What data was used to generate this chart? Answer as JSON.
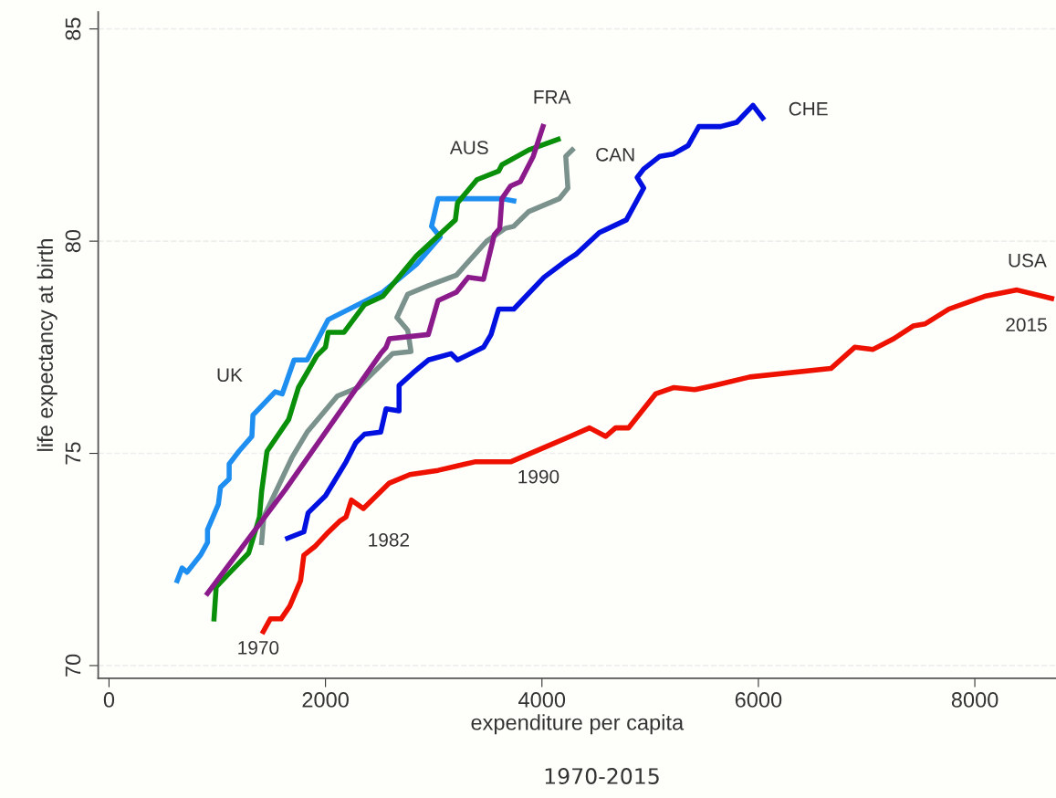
{
  "chart_data": {
    "type": "line",
    "xlabel": "expenditure per capita",
    "ylabel": "life expectancy at birth",
    "xlim": [
      -100,
      8750
    ],
    "ylim": [
      69.7,
      85.4
    ],
    "xticks": [
      0,
      2000,
      4000,
      6000,
      8000
    ],
    "yticks": [
      70,
      75,
      80,
      85
    ],
    "grid": "y",
    "line_style": "solid",
    "marker": "none",
    "series": [
      {
        "color": "#1e8ff0",
        "x": [
          630,
          675,
          720,
          845,
          910,
          910,
          1010,
          1030,
          1110,
          1110,
          1200,
          1320,
          1330,
          1535,
          1600,
          1710,
          1830,
          2025,
          2530,
          2840,
          3060,
          2980,
          3040,
          3630,
          3740
        ],
        "values": [
          72.0,
          72.3,
          72.2,
          72.6,
          72.9,
          73.2,
          73.8,
          74.2,
          74.4,
          74.75,
          75.05,
          75.4,
          75.9,
          76.45,
          76.4,
          77.2,
          77.2,
          78.15,
          78.8,
          79.45,
          80.1,
          80.35,
          81.0,
          81.0,
          80.95
        ]
      },
      {
        "color": "#0a8f0a",
        "x": [
          970,
          990,
          1120,
          1290,
          1390,
          1410,
          1460,
          1660,
          1750,
          1920,
          2000,
          2025,
          2170,
          2360,
          2530,
          2840,
          3200,
          3220,
          3400,
          3600,
          3630,
          3880,
          4150
        ],
        "values": [
          71.1,
          71.85,
          72.2,
          72.65,
          73.5,
          74.1,
          75.05,
          75.8,
          76.55,
          77.3,
          77.5,
          77.85,
          77.85,
          78.5,
          78.7,
          79.65,
          80.5,
          80.9,
          81.45,
          81.65,
          81.8,
          82.15,
          82.4
        ]
      },
      {
        "color": "#7a918c",
        "x": [
          1410,
          1430,
          1690,
          1830,
          2110,
          2300,
          2620,
          2790,
          2760,
          2660,
          2760,
          2950,
          3210,
          3490,
          3660,
          3740,
          3880,
          4160,
          4240,
          4220,
          4280
        ],
        "values": [
          72.9,
          73.5,
          74.9,
          75.5,
          76.35,
          76.55,
          77.35,
          77.4,
          77.9,
          78.2,
          78.75,
          78.95,
          79.2,
          80.0,
          80.3,
          80.35,
          80.7,
          81.0,
          81.25,
          82.0,
          82.15
        ]
      },
      {
        "color": "#8b1a8b",
        "x": [
          910,
          1630,
          2510,
          2560,
          2590,
          2950,
          3040,
          3210,
          3320,
          3460,
          3560,
          3610,
          3630,
          3710,
          3800,
          3920,
          4010
        ],
        "values": [
          71.7,
          74.15,
          77.35,
          77.5,
          77.7,
          77.8,
          78.6,
          78.8,
          79.15,
          79.1,
          80.15,
          80.3,
          81.0,
          81.3,
          81.4,
          82.0,
          82.7
        ]
      },
      {
        "color": "#0010e0",
        "x": [
          1650,
          1800,
          1840,
          2000,
          2190,
          2280,
          2360,
          2510,
          2560,
          2680,
          2680,
          2810,
          2950,
          3160,
          3220,
          3460,
          3530,
          3600,
          3740,
          4020,
          4230,
          4320,
          4530,
          4780,
          4940,
          4880,
          4940,
          5090,
          5210,
          5350,
          5450,
          5650,
          5800,
          5950,
          6040
        ],
        "values": [
          73.0,
          73.15,
          73.6,
          74.0,
          74.8,
          75.25,
          75.45,
          75.5,
          76.05,
          76.0,
          76.6,
          76.9,
          77.2,
          77.35,
          77.2,
          77.5,
          77.8,
          78.4,
          78.4,
          79.15,
          79.55,
          79.7,
          80.2,
          80.5,
          81.25,
          81.5,
          81.7,
          82.0,
          82.05,
          82.25,
          82.7,
          82.7,
          82.8,
          83.2,
          82.9
        ]
      },
      {
        "color": "#ee1100",
        "x": [
          1425,
          1490,
          1590,
          1670,
          1770,
          1800,
          1900,
          2010,
          2130,
          2190,
          2240,
          2350,
          2590,
          2780,
          3040,
          3210,
          3380,
          3710,
          4050,
          4260,
          4440,
          4590,
          4680,
          4800,
          5050,
          5220,
          5410,
          5590,
          5920,
          6670,
          6890,
          7060,
          7250,
          7430,
          7540,
          7760,
          8090,
          8390,
          8710
        ],
        "values": [
          70.8,
          71.1,
          71.1,
          71.4,
          72.0,
          72.6,
          72.8,
          73.1,
          73.4,
          73.5,
          73.9,
          73.7,
          74.3,
          74.5,
          74.6,
          74.7,
          74.8,
          74.8,
          75.17,
          75.4,
          75.6,
          75.4,
          75.6,
          75.6,
          76.4,
          76.55,
          76.5,
          76.6,
          76.8,
          77.0,
          77.5,
          77.45,
          77.7,
          78.0,
          78.05,
          78.4,
          78.7,
          78.85,
          78.65
        ]
      }
    ],
    "annotations": [
      {
        "text": "UK",
        "x": 1535,
        "y": 76.45
      },
      {
        "text": "AUS",
        "x": 3400,
        "y": 81.45
      },
      {
        "text": "FRA",
        "x": 4010,
        "y": 82.7
      },
      {
        "text": "CAN",
        "x": 4280,
        "y": 82.15
      },
      {
        "text": "CHE",
        "x": 6040,
        "y": 82.9
      },
      {
        "text": "USA",
        "x": 8390,
        "y": 78.85
      },
      {
        "text": "2015",
        "x": 8710,
        "y": 78.65
      },
      {
        "text": "1990",
        "x": 3710,
        "y": 74.8
      },
      {
        "text": "1982",
        "x": 2350,
        "y": 73.7
      },
      {
        "text": "1970",
        "x": 1425,
        "y": 70.8
      },
      "1970-2015"
    ]
  }
}
